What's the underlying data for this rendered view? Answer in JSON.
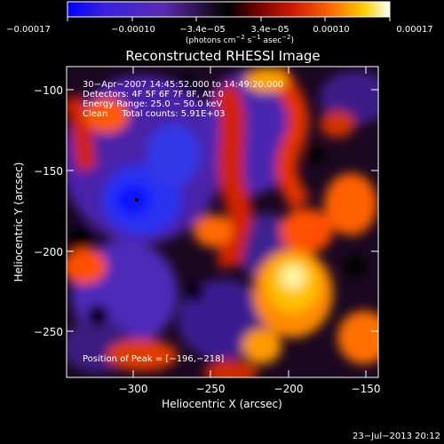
{
  "colorbar": {
    "tick_labels": [
      "−0.00017",
      "−0.00010",
      "−3.4e−05",
      "3.4e−05",
      "0.00010",
      "0.00017"
    ],
    "units": "(photons cm",
    "units_exp1": "−2",
    "units_mid": " s",
    "units_exp2": "−1",
    "units_mid2": " asec",
    "units_exp3": "−2",
    "units_end": ")"
  },
  "title": "Reconstructed RHESSI Image",
  "info": {
    "time_range": "30−Apr−2007 14:45:52.000 to 14:49:20.000",
    "detectors": "Detectors: 4F 5F 6F 7F 8F, Att 0",
    "energy": "Energy Range: 25.0 − 50.0 keV",
    "clean": "Clean     Total counts: 5.91E+03",
    "peak": "Position of Peak = [−196,−218]"
  },
  "axes": {
    "xlabel": "Heliocentric X (arcsec)",
    "ylabel": "Heliocentric Y (arcsec)",
    "x_ticks": [
      "−300",
      "−250",
      "−200",
      "−150"
    ],
    "y_ticks": [
      "−100",
      "−150",
      "−200",
      "−250"
    ]
  },
  "footer": {
    "timestamp": "23−Jul−2013 20:12"
  },
  "image_meta": {
    "x_range": [
      -340,
      -145
    ],
    "y_range": [
      -85,
      -280
    ],
    "peak": [
      -196,
      -218
    ],
    "colormap_stops": [
      "#0000ff",
      "#5a2ad8",
      "#2a1050",
      "#000000",
      "#c01000",
      "#ff5000",
      "#ffc000",
      "#ffffff"
    ]
  }
}
